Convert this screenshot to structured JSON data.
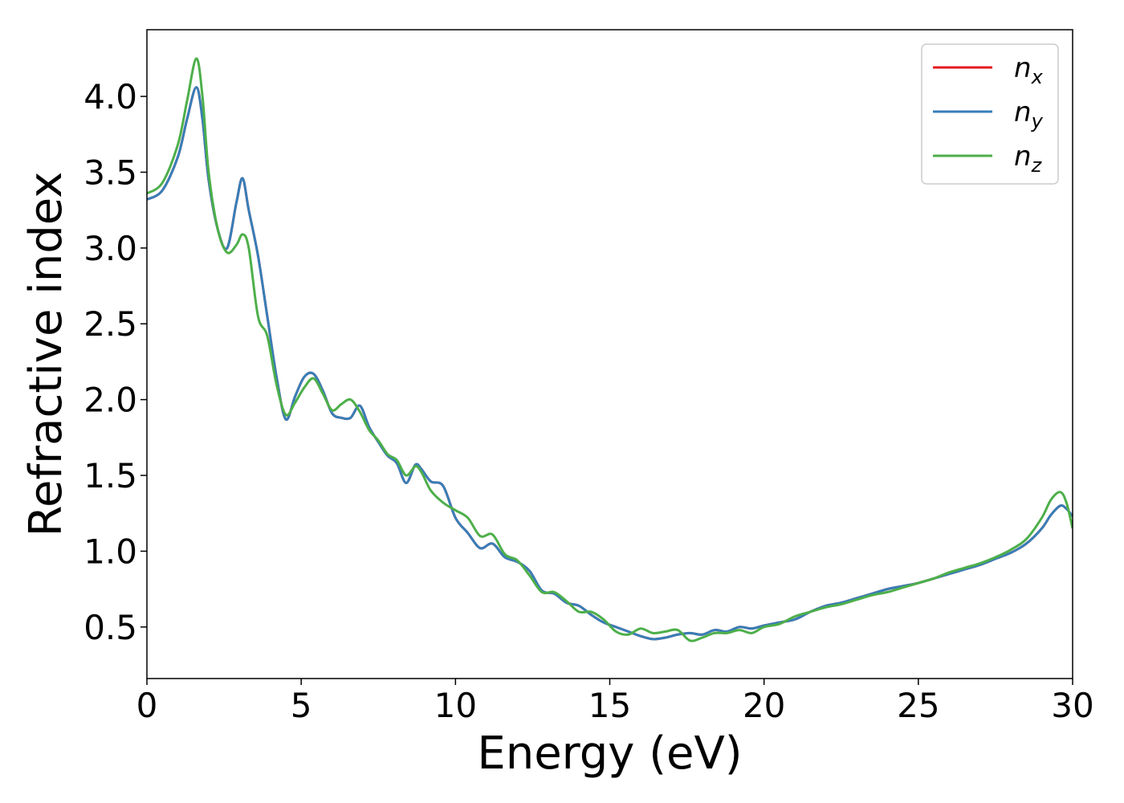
{
  "chart_data": {
    "type": "line",
    "title": "",
    "xlabel": "Energy (eV)",
    "ylabel": "Refractive index",
    "xlim": [
      0,
      30
    ],
    "ylim": [
      0.16,
      4.44
    ],
    "xticks": [
      0,
      5,
      10,
      15,
      20,
      25,
      30
    ],
    "xtick_labels": [
      "0",
      "5",
      "10",
      "15",
      "20",
      "25",
      "30"
    ],
    "yticks": [
      0.5,
      1.0,
      1.5,
      2.0,
      2.5,
      3.0,
      3.5,
      4.0
    ],
    "ytick_labels": [
      "0.5",
      "1.0",
      "1.5",
      "2.0",
      "2.5",
      "3.0",
      "3.5",
      "4.0"
    ],
    "grid": false,
    "legend_position": "top-right",
    "series": [
      {
        "name": "n_x",
        "label_base": "n",
        "label_sub": "x",
        "color": "#e41a1c",
        "x": [
          0,
          0.5,
          1.0,
          1.3,
          1.6,
          1.8,
          2.0,
          2.3,
          2.6,
          2.9,
          3.1,
          3.3,
          3.6,
          3.9,
          4.2,
          4.5,
          4.8,
          5.1,
          5.4,
          5.7,
          6.0,
          6.3,
          6.6,
          6.9,
          7.2,
          7.5,
          7.8,
          8.1,
          8.4,
          8.7,
          8.9,
          9.2,
          9.6,
          10.0,
          10.4,
          10.8,
          11.2,
          11.6,
          12.0,
          12.4,
          12.8,
          13.2,
          13.6,
          14.0,
          14.4,
          14.8,
          15.2,
          15.6,
          16.0,
          16.4,
          16.8,
          17.2,
          17.6,
          18.0,
          18.4,
          18.8,
          19.2,
          19.6,
          20.0,
          20.5,
          21.0,
          21.5,
          22.0,
          22.5,
          23.0,
          23.5,
          24.0,
          24.5,
          25.0,
          25.5,
          26.0,
          26.5,
          27.0,
          27.5,
          28.0,
          28.5,
          29.0,
          29.3,
          29.6,
          29.8,
          30.0
        ],
        "y": [
          3.32,
          3.38,
          3.6,
          3.85,
          4.06,
          3.85,
          3.45,
          3.12,
          3.0,
          3.3,
          3.46,
          3.25,
          2.95,
          2.55,
          2.15,
          1.87,
          2.02,
          2.15,
          2.17,
          2.06,
          1.91,
          1.88,
          1.88,
          1.96,
          1.82,
          1.72,
          1.63,
          1.58,
          1.45,
          1.57,
          1.54,
          1.46,
          1.43,
          1.22,
          1.12,
          1.02,
          1.05,
          0.96,
          0.93,
          0.87,
          0.74,
          0.72,
          0.66,
          0.64,
          0.58,
          0.53,
          0.5,
          0.47,
          0.44,
          0.42,
          0.43,
          0.45,
          0.46,
          0.45,
          0.48,
          0.47,
          0.5,
          0.49,
          0.51,
          0.53,
          0.55,
          0.6,
          0.64,
          0.66,
          0.69,
          0.72,
          0.75,
          0.77,
          0.79,
          0.82,
          0.85,
          0.88,
          0.91,
          0.95,
          0.99,
          1.05,
          1.15,
          1.24,
          1.3,
          1.28,
          1.23
        ]
      },
      {
        "name": "n_y",
        "label_base": "n",
        "label_sub": "y",
        "color": "#377eb8",
        "x": [
          0,
          0.5,
          1.0,
          1.3,
          1.6,
          1.8,
          2.0,
          2.3,
          2.6,
          2.9,
          3.1,
          3.3,
          3.6,
          3.9,
          4.2,
          4.5,
          4.8,
          5.1,
          5.4,
          5.7,
          6.0,
          6.3,
          6.6,
          6.9,
          7.2,
          7.5,
          7.8,
          8.1,
          8.4,
          8.7,
          8.9,
          9.2,
          9.6,
          10.0,
          10.4,
          10.8,
          11.2,
          11.6,
          12.0,
          12.4,
          12.8,
          13.2,
          13.6,
          14.0,
          14.4,
          14.8,
          15.2,
          15.6,
          16.0,
          16.4,
          16.8,
          17.2,
          17.6,
          18.0,
          18.4,
          18.8,
          19.2,
          19.6,
          20.0,
          20.5,
          21.0,
          21.5,
          22.0,
          22.5,
          23.0,
          23.5,
          24.0,
          24.5,
          25.0,
          25.5,
          26.0,
          26.5,
          27.0,
          27.5,
          28.0,
          28.5,
          29.0,
          29.3,
          29.6,
          29.8,
          30.0
        ],
        "y": [
          3.32,
          3.38,
          3.6,
          3.85,
          4.06,
          3.85,
          3.45,
          3.12,
          3.0,
          3.3,
          3.46,
          3.25,
          2.95,
          2.55,
          2.15,
          1.87,
          2.02,
          2.15,
          2.17,
          2.06,
          1.91,
          1.88,
          1.88,
          1.96,
          1.82,
          1.72,
          1.63,
          1.58,
          1.45,
          1.57,
          1.54,
          1.46,
          1.43,
          1.22,
          1.12,
          1.02,
          1.05,
          0.96,
          0.93,
          0.87,
          0.74,
          0.72,
          0.66,
          0.64,
          0.58,
          0.53,
          0.5,
          0.47,
          0.44,
          0.42,
          0.43,
          0.45,
          0.46,
          0.45,
          0.48,
          0.47,
          0.5,
          0.49,
          0.51,
          0.53,
          0.55,
          0.6,
          0.64,
          0.66,
          0.69,
          0.72,
          0.75,
          0.77,
          0.79,
          0.82,
          0.85,
          0.88,
          0.91,
          0.95,
          0.99,
          1.05,
          1.15,
          1.24,
          1.3,
          1.28,
          1.23
        ]
      },
      {
        "name": "n_z",
        "label_base": "n",
        "label_sub": "z",
        "color": "#4daf4a",
        "x": [
          0,
          0.5,
          1.0,
          1.3,
          1.6,
          1.8,
          2.0,
          2.3,
          2.6,
          2.9,
          3.1,
          3.3,
          3.6,
          3.9,
          4.2,
          4.5,
          4.8,
          5.1,
          5.4,
          5.7,
          6.0,
          6.3,
          6.6,
          6.9,
          7.2,
          7.5,
          7.8,
          8.1,
          8.4,
          8.7,
          8.9,
          9.2,
          9.6,
          10.0,
          10.4,
          10.8,
          11.2,
          11.6,
          12.0,
          12.4,
          12.8,
          13.2,
          13.6,
          14.0,
          14.4,
          14.8,
          15.2,
          15.6,
          16.0,
          16.4,
          16.8,
          17.2,
          17.6,
          18.0,
          18.4,
          18.8,
          19.2,
          19.6,
          20.0,
          20.5,
          21.0,
          21.5,
          22.0,
          22.5,
          23.0,
          23.5,
          24.0,
          24.5,
          25.0,
          25.5,
          26.0,
          26.5,
          27.0,
          27.5,
          28.0,
          28.5,
          29.0,
          29.3,
          29.6,
          29.8,
          30.0
        ],
        "y": [
          3.36,
          3.43,
          3.68,
          3.97,
          4.25,
          4.0,
          3.5,
          3.12,
          2.97,
          3.02,
          3.09,
          3.0,
          2.55,
          2.42,
          2.1,
          1.9,
          1.98,
          2.08,
          2.14,
          2.04,
          1.93,
          1.97,
          2.0,
          1.92,
          1.8,
          1.73,
          1.64,
          1.6,
          1.5,
          1.56,
          1.52,
          1.4,
          1.32,
          1.27,
          1.22,
          1.1,
          1.11,
          0.98,
          0.94,
          0.84,
          0.73,
          0.73,
          0.67,
          0.6,
          0.6,
          0.55,
          0.47,
          0.45,
          0.49,
          0.46,
          0.47,
          0.48,
          0.41,
          0.43,
          0.46,
          0.46,
          0.48,
          0.46,
          0.5,
          0.52,
          0.57,
          0.6,
          0.63,
          0.65,
          0.68,
          0.71,
          0.73,
          0.76,
          0.79,
          0.82,
          0.86,
          0.89,
          0.92,
          0.96,
          1.01,
          1.08,
          1.22,
          1.34,
          1.39,
          1.32,
          1.15
        ]
      }
    ]
  }
}
